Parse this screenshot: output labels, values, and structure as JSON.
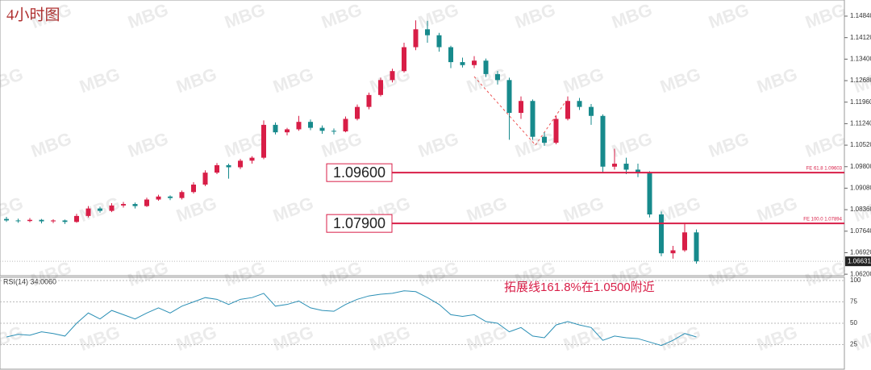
{
  "chart_data": {
    "type": "candlestick",
    "title": "4小时图",
    "watermark": "MBG",
    "up_color": "#d81e47",
    "down_color": "#178a8c",
    "ylim": [
      1.0615,
      1.1538
    ],
    "yticks": [
      {
        "value": 1.1484,
        "label": "1.14840"
      },
      {
        "value": 1.1412,
        "label": "1.14120"
      },
      {
        "value": 1.134,
        "label": "1.13400"
      },
      {
        "value": 1.1268,
        "label": "1.12680"
      },
      {
        "value": 1.1196,
        "label": "1.11960"
      },
      {
        "value": 1.1124,
        "label": "1.11240"
      },
      {
        "value": 1.1052,
        "label": "1.10520"
      },
      {
        "value": 1.098,
        "label": "1.09800"
      },
      {
        "value": 1.0908,
        "label": "1.09080"
      },
      {
        "value": 1.0836,
        "label": "1.08360"
      },
      {
        "value": 1.0764,
        "label": "1.07640"
      },
      {
        "value": 1.0692,
        "label": "1.06920"
      },
      {
        "value": 1.062,
        "label": "1.06200"
      }
    ],
    "last_price": {
      "value": 1.06631,
      "label": "1.06631"
    },
    "levels": [
      {
        "value": 1.096,
        "label": "1.09600",
        "note": "FE 61.8  1.09603"
      },
      {
        "value": 1.079,
        "label": "1.07900",
        "note": "FE 100.0  1.07894"
      }
    ],
    "annotation": "拓展线161.8%在1.0500附近",
    "candles": [
      [
        1.0805,
        1.0812,
        1.0795,
        1.08
      ],
      [
        1.08,
        1.0806,
        1.0792,
        1.0798
      ],
      [
        1.0798,
        1.0808,
        1.0794,
        1.0802
      ],
      [
        1.0802,
        1.0805,
        1.079,
        1.0797
      ],
      [
        1.0797,
        1.0804,
        1.0791,
        1.08
      ],
      [
        1.08,
        1.0803,
        1.0788,
        1.0795
      ],
      [
        1.0795,
        1.0822,
        1.0792,
        1.0815
      ],
      [
        1.0815,
        1.0848,
        1.081,
        1.084
      ],
      [
        1.084,
        1.0846,
        1.0826,
        1.0832
      ],
      [
        1.0832,
        1.0858,
        1.0828,
        1.085
      ],
      [
        1.085,
        1.0862,
        1.0843,
        1.0855
      ],
      [
        1.0855,
        1.086,
        1.084,
        1.0848
      ],
      [
        1.0848,
        1.0876,
        1.0845,
        1.087
      ],
      [
        1.087,
        1.0886,
        1.0866,
        1.088
      ],
      [
        1.088,
        1.0884,
        1.0868,
        1.0875
      ],
      [
        1.0875,
        1.09,
        1.087,
        1.0895
      ],
      [
        1.0895,
        1.0928,
        1.089,
        1.092
      ],
      [
        1.092,
        1.0968,
        1.0915,
        1.096
      ],
      [
        1.096,
        1.0992,
        1.0955,
        1.0985
      ],
      [
        1.0985,
        1.099,
        1.094,
        1.0978
      ],
      [
        1.0978,
        1.1006,
        1.0972,
        1.1
      ],
      [
        1.1,
        1.1015,
        1.099,
        1.101
      ],
      [
        1.101,
        1.1135,
        1.1005,
        1.112
      ],
      [
        1.112,
        1.1128,
        1.1088,
        1.1095
      ],
      [
        1.1095,
        1.111,
        1.1085,
        1.1105
      ],
      [
        1.1105,
        1.115,
        1.11,
        1.113
      ],
      [
        1.113,
        1.1138,
        1.1102,
        1.111
      ],
      [
        1.111,
        1.1118,
        1.109,
        1.11
      ],
      [
        1.11,
        1.1108,
        1.1088,
        1.1098
      ],
      [
        1.1098,
        1.1148,
        1.1095,
        1.114
      ],
      [
        1.114,
        1.1188,
        1.1135,
        1.118
      ],
      [
        1.118,
        1.1228,
        1.1172,
        1.122
      ],
      [
        1.122,
        1.1278,
        1.1215,
        1.127
      ],
      [
        1.127,
        1.1308,
        1.1262,
        1.13
      ],
      [
        1.13,
        1.1395,
        1.1295,
        1.138
      ],
      [
        1.138,
        1.147,
        1.137,
        1.144
      ],
      [
        1.144,
        1.1468,
        1.1395,
        1.142
      ],
      [
        1.142,
        1.1428,
        1.1365,
        1.138
      ],
      [
        1.138,
        1.1385,
        1.131,
        1.133
      ],
      [
        1.133,
        1.1345,
        1.1312,
        1.132
      ],
      [
        1.132,
        1.135,
        1.131,
        1.1335
      ],
      [
        1.1335,
        1.1342,
        1.128,
        1.129
      ],
      [
        1.129,
        1.13,
        1.1255,
        1.127
      ],
      [
        1.127,
        1.1278,
        1.107,
        1.116
      ],
      [
        1.116,
        1.1215,
        1.114,
        1.12
      ],
      [
        1.12,
        1.1205,
        1.107,
        1.108
      ],
      [
        1.108,
        1.1095,
        1.105,
        1.106
      ],
      [
        1.106,
        1.115,
        1.1055,
        1.114
      ],
      [
        1.114,
        1.1215,
        1.1135,
        1.12
      ],
      [
        1.12,
        1.121,
        1.117,
        1.118
      ],
      [
        1.118,
        1.119,
        1.112,
        1.115
      ],
      [
        1.115,
        1.1155,
        1.096,
        1.098
      ],
      [
        1.098,
        1.104,
        1.097,
        1.099
      ],
      [
        1.099,
        1.101,
        1.0955,
        1.097
      ],
      [
        1.097,
        1.099,
        1.0945,
        1.096
      ],
      [
        1.096,
        1.0965,
        1.081,
        1.082
      ],
      [
        1.082,
        1.083,
        1.068,
        1.069
      ],
      [
        1.069,
        1.0715,
        1.0672,
        1.07
      ],
      [
        1.07,
        1.0792,
        1.0695,
        1.076
      ],
      [
        1.076,
        1.077,
        1.0655,
        1.0663
      ]
    ],
    "rsi": {
      "label": "RSI(14) 34.0060",
      "color": "#2a8fb5",
      "ylim": [
        0,
        100
      ],
      "yticks": [
        100,
        75,
        50,
        25
      ],
      "values": [
        34,
        37,
        36,
        40,
        38,
        35,
        50,
        62,
        55,
        65,
        60,
        55,
        62,
        68,
        62,
        70,
        75,
        80,
        78,
        72,
        78,
        80,
        85,
        70,
        72,
        76,
        68,
        65,
        64,
        72,
        78,
        82,
        84,
        85,
        88,
        87,
        80,
        72,
        60,
        58,
        60,
        52,
        50,
        40,
        45,
        35,
        33,
        48,
        52,
        48,
        45,
        30,
        35,
        33,
        32,
        28,
        24,
        30,
        38,
        34
      ]
    }
  }
}
